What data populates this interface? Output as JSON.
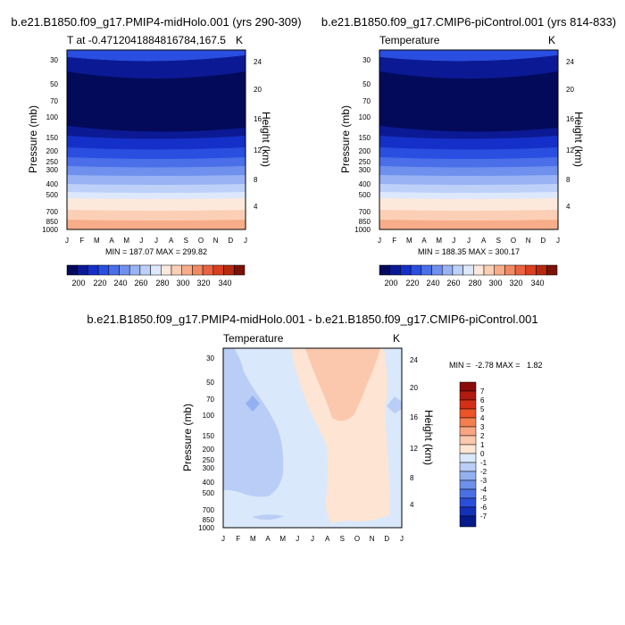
{
  "chart_data": [
    {
      "type": "heatmap",
      "title": "b.e21.B1850.f09_g17.PMIP4-midHolo.001 (yrs 290-309)",
      "subtitle_left": "T at -0.4712041884816784,167.5",
      "subtitle_right": "K",
      "ylabel": "Pressure (mb)",
      "ylabel_right": "Height (km)",
      "months": [
        "J",
        "F",
        "M",
        "A",
        "M",
        "J",
        "J",
        "A",
        "S",
        "O",
        "N",
        "D",
        "J"
      ],
      "pressure_ticks": [
        "30",
        "50",
        "70",
        "100",
        "150",
        "200",
        "250",
        "300",
        "400",
        "500",
        "700",
        "850",
        "1000"
      ],
      "height_ticks": [
        "24",
        "20",
        "16",
        "12",
        "8",
        "4"
      ],
      "stats": "MIN = 187.07 MAX = 299.82",
      "colorbar_labels": [
        "200",
        "220",
        "240",
        "260",
        "280",
        "300",
        "320",
        "340"
      ]
    },
    {
      "type": "heatmap",
      "title": "b.e21.B1850.f09_g17.CMIP6-piControl.001 (yrs 814-833)",
      "subtitle_left": "Temperature",
      "subtitle_right": "K",
      "ylabel": "Pressure (mb)",
      "ylabel_right": "Height (km)",
      "months": [
        "J",
        "F",
        "M",
        "A",
        "M",
        "J",
        "J",
        "A",
        "S",
        "O",
        "N",
        "D",
        "J"
      ],
      "pressure_ticks": [
        "30",
        "50",
        "70",
        "100",
        "150",
        "200",
        "250",
        "300",
        "400",
        "500",
        "700",
        "850",
        "1000"
      ],
      "height_ticks": [
        "24",
        "20",
        "16",
        "12",
        "8",
        "4"
      ],
      "stats": "MIN = 188.35 MAX = 300.17",
      "colorbar_labels": [
        "200",
        "220",
        "240",
        "260",
        "280",
        "300",
        "320",
        "340"
      ]
    },
    {
      "type": "heatmap",
      "title": "b.e21.B1850.f09_g17.PMIP4-midHolo.001 - b.e21.B1850.f09_g17.CMIP6-piControl.001",
      "subtitle_left": "Temperature",
      "subtitle_right": "K",
      "ylabel": "Pressure (mb)",
      "ylabel_right": "Height (km)",
      "months": [
        "J",
        "F",
        "M",
        "A",
        "M",
        "J",
        "J",
        "A",
        "S",
        "O",
        "N",
        "D",
        "J"
      ],
      "pressure_ticks": [
        "30",
        "50",
        "70",
        "100",
        "150",
        "200",
        "250",
        "300",
        "400",
        "500",
        "700",
        "850",
        "1000"
      ],
      "height_ticks": [
        "24",
        "20",
        "16",
        "12",
        "8",
        "4"
      ],
      "stats": "MIN =  -2.78 MAX =   1.82",
      "colorbar_labels": [
        "7",
        "6",
        "5",
        "4",
        "3",
        "2",
        "1",
        "0",
        "-1",
        "-2",
        "-3",
        "-4",
        "-5",
        "-6",
        "-7"
      ]
    }
  ],
  "colors": {
    "abs_scale": [
      "#030a5a",
      "#0b1a94",
      "#1530c8",
      "#2a4ee0",
      "#4a6fe8",
      "#7090ee",
      "#98b2f4",
      "#bdd0f8",
      "#dde8fc",
      "#fde8dc",
      "#fbcfb5",
      "#f7ad8a",
      "#f18a62",
      "#ea6340",
      "#d8401f",
      "#b52a0e",
      "#7a1206"
    ],
    "diff_scale": [
      "#8b0a0a",
      "#b01a10",
      "#d32f16",
      "#ec5326",
      "#f47f4e",
      "#f7a582",
      "#fbc8ad",
      "#fde4d3",
      "#dae8fb",
      "#b9cdf6",
      "#93b0f0",
      "#6e90ea",
      "#4a6fe4",
      "#2a4ed8",
      "#1430b8",
      "#061a8a"
    ]
  }
}
